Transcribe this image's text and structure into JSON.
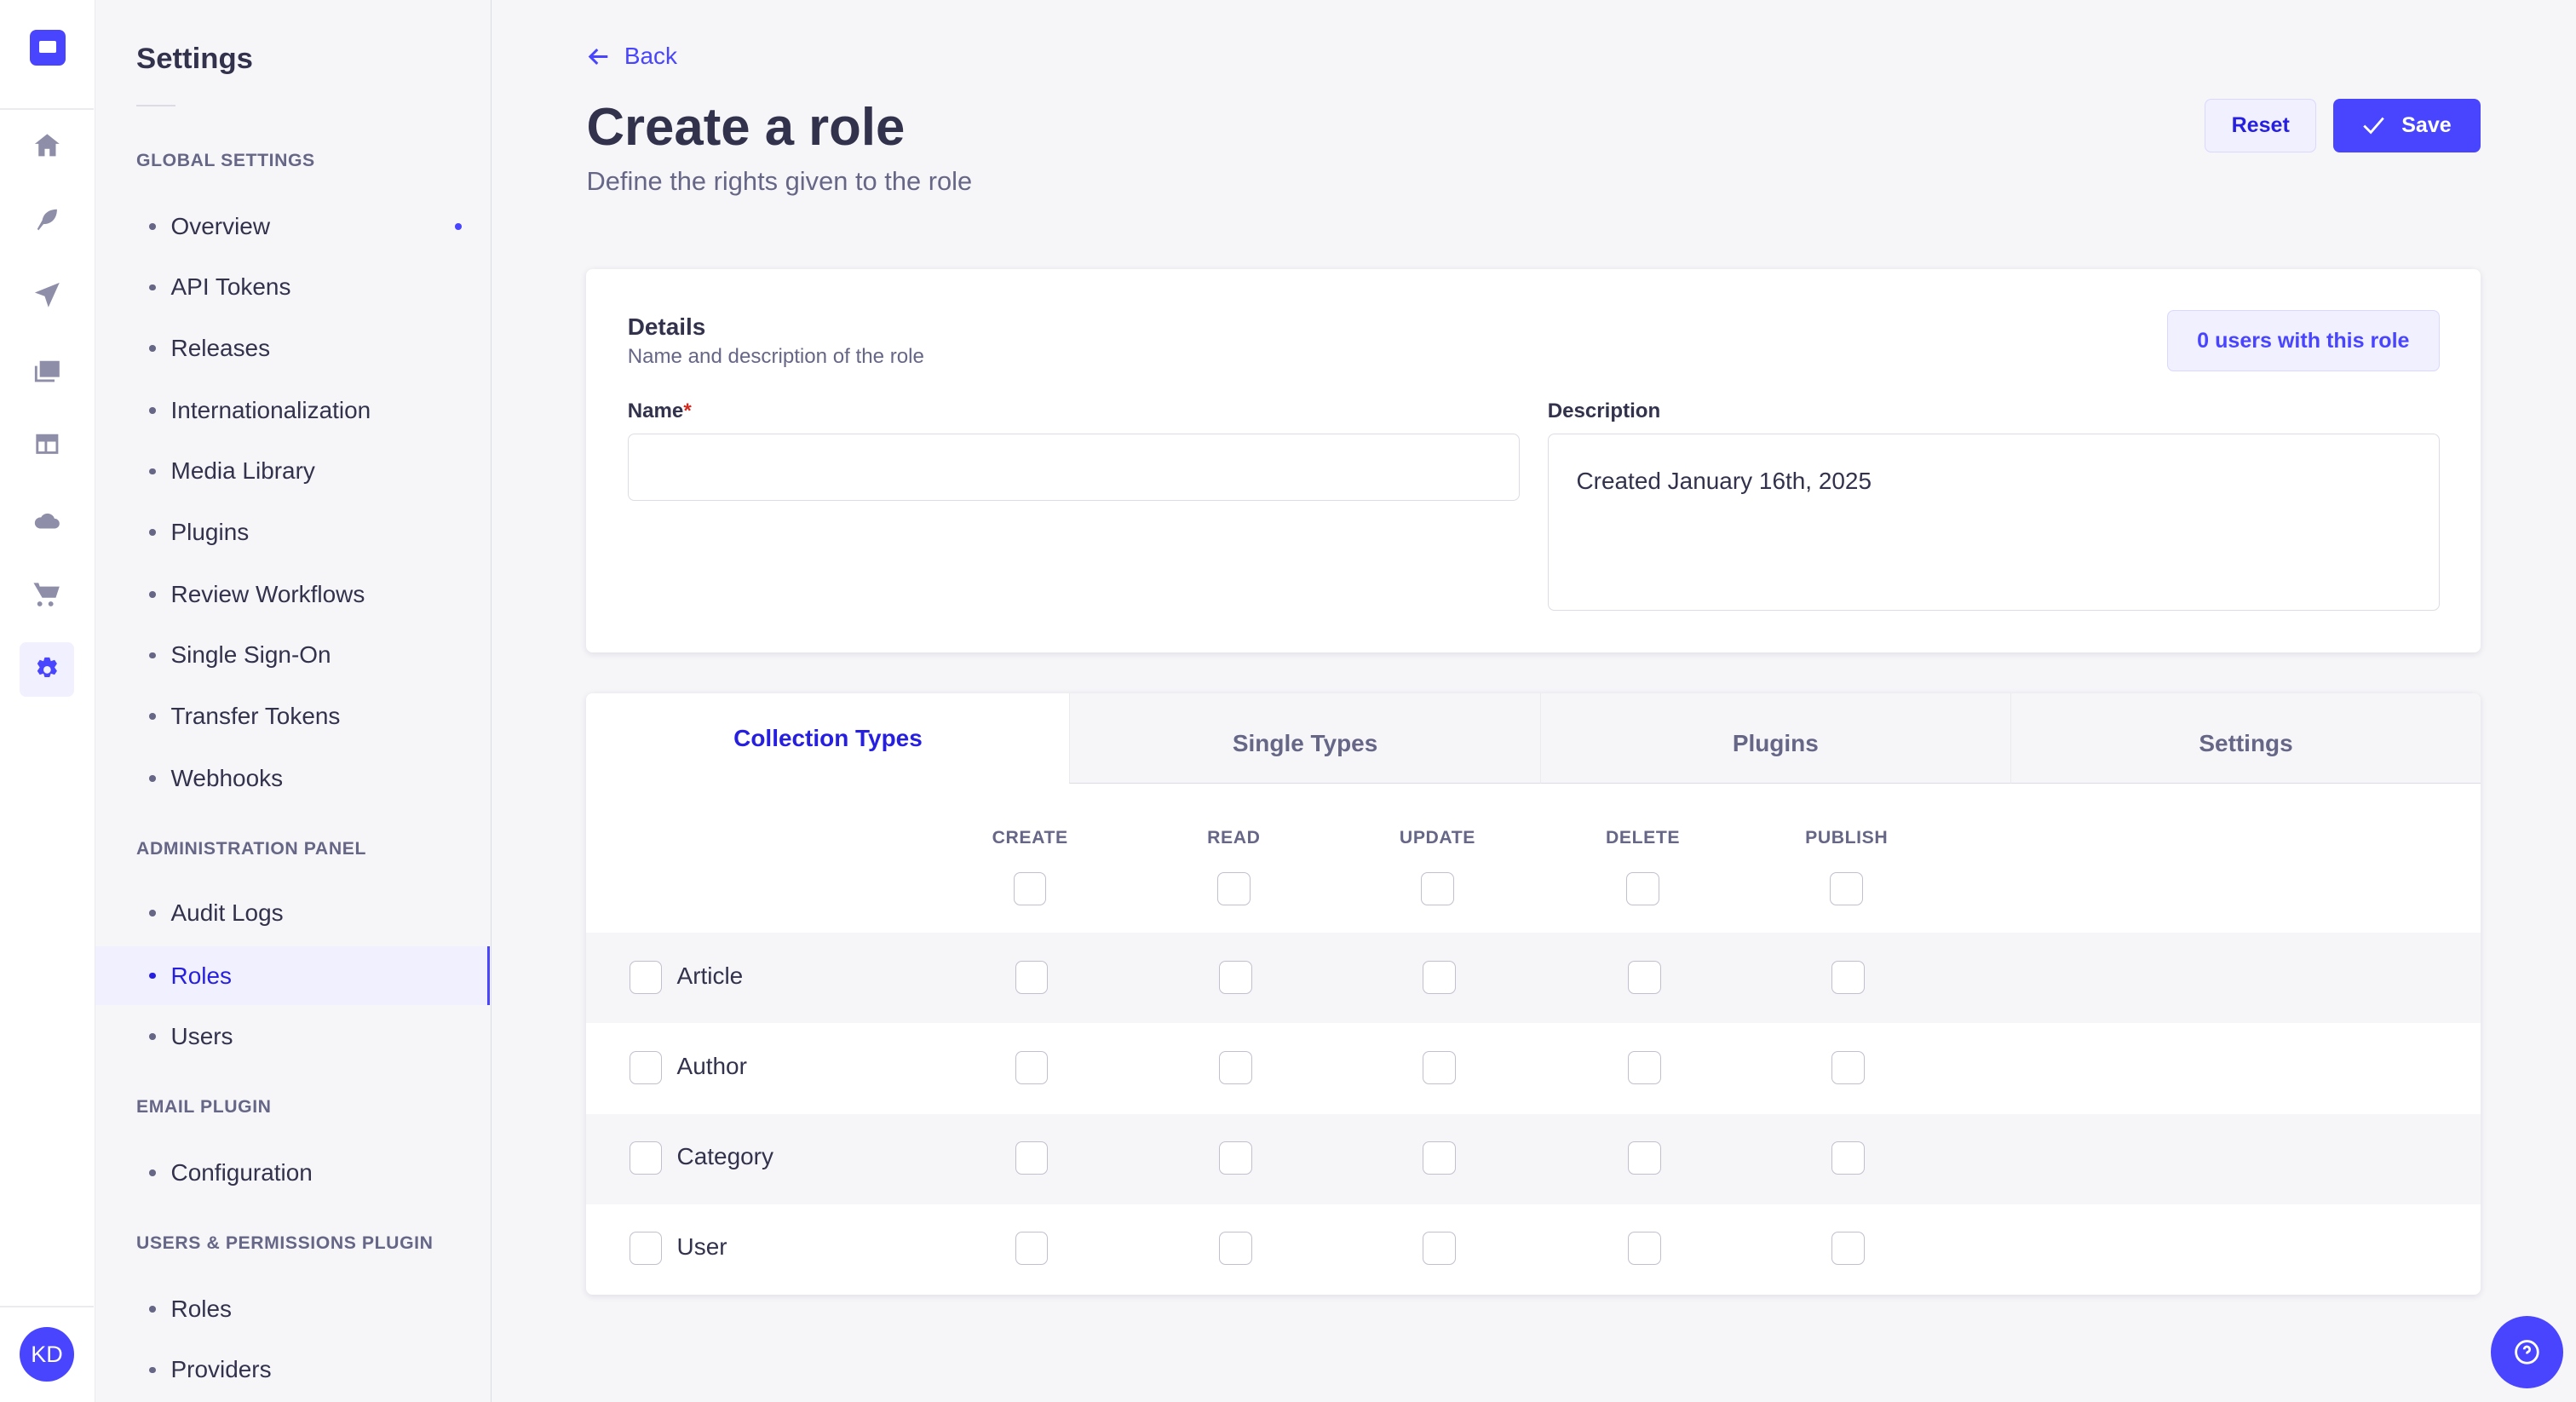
{
  "nav": {
    "avatar_initials": "KD",
    "icons": [
      "home-icon",
      "feather-icon",
      "paper-plane-icon",
      "images-icon",
      "layout-icon",
      "cloud-icon",
      "cart-icon",
      "gear-icon"
    ],
    "accent": "#4945ff"
  },
  "sidebar": {
    "title": "Settings",
    "sections": [
      {
        "label": "GLOBAL SETTINGS",
        "items": [
          "Overview",
          "API Tokens",
          "Releases",
          "Internationalization",
          "Media Library",
          "Plugins",
          "Review Workflows",
          "Single Sign-On",
          "Transfer Tokens",
          "Webhooks"
        ]
      },
      {
        "label": "ADMINISTRATION PANEL",
        "items": [
          "Audit Logs",
          "Roles",
          "Users"
        ]
      },
      {
        "label": "EMAIL PLUGIN",
        "items": [
          "Configuration"
        ]
      },
      {
        "label": "USERS & PERMISSIONS PLUGIN",
        "items": [
          "Roles",
          "Providers"
        ]
      }
    ],
    "active": "Roles"
  },
  "header": {
    "back": "Back",
    "title": "Create a role",
    "subtitle": "Define the rights given to the role",
    "reset": "Reset",
    "save": "Save"
  },
  "details": {
    "title": "Details",
    "subtitle": "Name and description of the role",
    "users_badge": "0 users with this role",
    "name_label": "Name",
    "required_mark": "*",
    "name_value": "",
    "description_label": "Description",
    "description_value": "Created January 16th, 2025"
  },
  "permissions": {
    "tabs": [
      "Collection Types",
      "Single Types",
      "Plugins",
      "Settings"
    ],
    "active_tab": "Collection Types",
    "columns": [
      "CREATE",
      "READ",
      "UPDATE",
      "DELETE",
      "PUBLISH"
    ],
    "rows": [
      "Article",
      "Author",
      "Category",
      "User"
    ]
  }
}
